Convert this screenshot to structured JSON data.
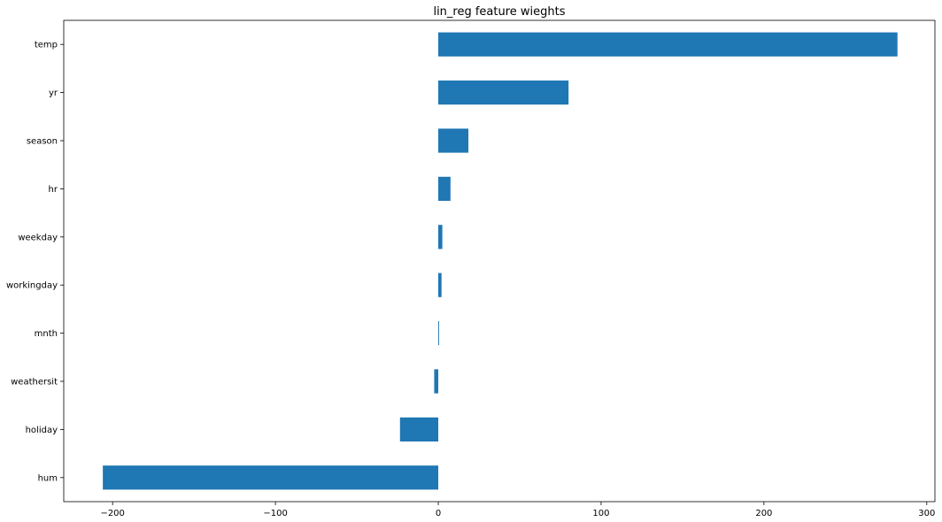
{
  "chart_data": {
    "type": "bar",
    "orientation": "horizontal",
    "title": "lin_reg feature wieghts",
    "xlabel": "",
    "ylabel": "",
    "categories": [
      "temp",
      "yr",
      "season",
      "hr",
      "weekday",
      "workingday",
      "mnth",
      "weathersit",
      "holiday",
      "hum"
    ],
    "values": [
      282,
      80,
      18.5,
      7.5,
      2.5,
      2,
      0.5,
      -2.5,
      -23.5,
      -206
    ],
    "xlim": [
      -230,
      305
    ],
    "xticks": [
      -200,
      -100,
      0,
      100,
      200,
      300
    ],
    "xtick_labels": [
      "−200",
      "−100",
      "0",
      "100",
      "200",
      "300"
    ],
    "grid": false,
    "legend": "none",
    "colors": {
      "bar": "#1f77b4"
    }
  }
}
